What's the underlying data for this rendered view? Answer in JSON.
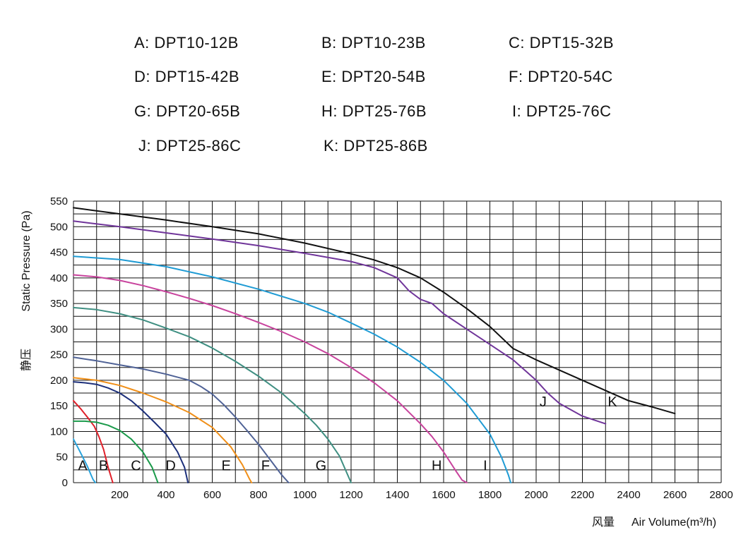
{
  "legend": [
    {
      "key": "A",
      "text": "A: DPT10-12B"
    },
    {
      "key": "B",
      "text": "B: DPT10-23B"
    },
    {
      "key": "C",
      "text": "C: DPT15-32B"
    },
    {
      "key": "D",
      "text": "D: DPT15-42B"
    },
    {
      "key": "E",
      "text": "E: DPT20-54B"
    },
    {
      "key": "F",
      "text": "F: DPT20-54C"
    },
    {
      "key": "G",
      "text": "G: DPT20-65B"
    },
    {
      "key": "H",
      "text": "H: DPT25-76B"
    },
    {
      "key": "I",
      "text": "I: DPT25-76C"
    },
    {
      "key": "J",
      "text": "J: DPT25-86C"
    },
    {
      "key": "K",
      "text": "K: DPT25-86B"
    }
  ],
  "chart_data": {
    "type": "line",
    "title": "",
    "ylabel_en": "Static Pressure (Pa)",
    "ylabel_zh": "静压",
    "xlabel_zh": "风量",
    "xlabel_en": "Air Volume(m³/h)",
    "xlim": [
      0,
      2800
    ],
    "ylim": [
      0,
      550
    ],
    "x_ticks": [
      200,
      400,
      600,
      800,
      1000,
      1200,
      1400,
      1600,
      1800,
      2000,
      2200,
      2400,
      2600,
      2800
    ],
    "y_ticks": [
      0,
      50,
      100,
      150,
      200,
      250,
      300,
      350,
      400,
      450,
      500,
      550
    ],
    "grid": true,
    "series": [
      {
        "name": "A",
        "color": "#29a3dc",
        "x": [
          0,
          20,
          40,
          60,
          75,
          85,
          95
        ],
        "y": [
          85,
          68,
          50,
          32,
          16,
          6,
          0
        ]
      },
      {
        "name": "B",
        "color": "#e0202a",
        "x": [
          0,
          30,
          60,
          90,
          110,
          130,
          150,
          170
        ],
        "y": [
          160,
          145,
          128,
          110,
          90,
          65,
          30,
          0
        ]
      },
      {
        "name": "C",
        "color": "#1a9a4a",
        "x": [
          0,
          50,
          100,
          150,
          200,
          250,
          300,
          340,
          365
        ],
        "y": [
          120,
          120,
          118,
          112,
          102,
          85,
          60,
          30,
          0
        ]
      },
      {
        "name": "D",
        "color": "#1c2f7a",
        "x": [
          0,
          50,
          100,
          150,
          200,
          250,
          300,
          350,
          400,
          450,
          480,
          495
        ],
        "y": [
          197,
          195,
          192,
          185,
          175,
          160,
          140,
          118,
          95,
          60,
          30,
          0
        ]
      },
      {
        "name": "E",
        "color": "#f08f18",
        "x": [
          0,
          100,
          200,
          300,
          400,
          500,
          600,
          680,
          730,
          760,
          770
        ],
        "y": [
          205,
          200,
          190,
          175,
          158,
          137,
          108,
          70,
          35,
          8,
          0
        ]
      },
      {
        "name": "F",
        "color": "#4f6296",
        "x": [
          0,
          100,
          200,
          300,
          400,
          500,
          550,
          600,
          650,
          700,
          750,
          800,
          850,
          900,
          930
        ],
        "y": [
          245,
          238,
          230,
          222,
          212,
          200,
          188,
          173,
          152,
          128,
          102,
          75,
          45,
          15,
          0
        ]
      },
      {
        "name": "G",
        "color": "#3f8f82",
        "x": [
          0,
          100,
          200,
          300,
          400,
          500,
          600,
          700,
          800,
          900,
          1000,
          1050,
          1100,
          1150,
          1200
        ],
        "y": [
          342,
          338,
          330,
          318,
          302,
          285,
          263,
          237,
          208,
          175,
          135,
          112,
          85,
          52,
          0
        ]
      },
      {
        "name": "H",
        "color": "#c8439d",
        "x": [
          0,
          100,
          200,
          300,
          400,
          500,
          600,
          700,
          800,
          900,
          1000,
          1100,
          1200,
          1300,
          1400,
          1500,
          1550,
          1600,
          1650,
          1680,
          1700
        ],
        "y": [
          406,
          402,
          395,
          385,
          373,
          360,
          346,
          330,
          313,
          295,
          275,
          252,
          225,
          195,
          160,
          115,
          90,
          60,
          25,
          5,
          0
        ]
      },
      {
        "name": "I",
        "color": "#1f9bd4",
        "x": [
          0,
          200,
          400,
          600,
          800,
          1000,
          1100,
          1200,
          1300,
          1400,
          1500,
          1600,
          1700,
          1750,
          1800,
          1850,
          1880,
          1890
        ],
        "y": [
          442,
          436,
          422,
          402,
          378,
          350,
          333,
          312,
          290,
          265,
          235,
          200,
          155,
          125,
          95,
          50,
          15,
          0
        ]
      },
      {
        "name": "J",
        "color": "#70359a",
        "x": [
          0,
          200,
          400,
          600,
          800,
          1000,
          1200,
          1300,
          1400,
          1450,
          1500,
          1550,
          1600,
          1700,
          1800,
          1900,
          2000,
          2050,
          2100,
          2200,
          2300
        ],
        "y": [
          511,
          500,
          488,
          476,
          463,
          448,
          432,
          420,
          400,
          375,
          358,
          350,
          330,
          300,
          270,
          240,
          200,
          175,
          155,
          130,
          115
        ]
      },
      {
        "name": "K",
        "color": "#111111",
        "x": [
          0,
          200,
          400,
          600,
          800,
          1000,
          1200,
          1300,
          1400,
          1500,
          1600,
          1700,
          1800,
          1900,
          2000,
          2100,
          2200,
          2300,
          2400,
          2500,
          2600
        ],
        "y": [
          537,
          525,
          513,
          500,
          486,
          468,
          447,
          435,
          420,
          400,
          372,
          340,
          305,
          262,
          240,
          220,
          200,
          180,
          160,
          148,
          135
        ]
      }
    ],
    "curve_labels": [
      {
        "text": "A",
        "x": 40,
        "y": 35
      },
      {
        "text": "B",
        "x": 130,
        "y": 35
      },
      {
        "text": "C",
        "x": 270,
        "y": 35
      },
      {
        "text": "D",
        "x": 420,
        "y": 35
      },
      {
        "text": "E",
        "x": 660,
        "y": 35
      },
      {
        "text": "F",
        "x": 830,
        "y": 35
      },
      {
        "text": "G",
        "x": 1070,
        "y": 35
      },
      {
        "text": "H",
        "x": 1570,
        "y": 35
      },
      {
        "text": "I",
        "x": 1780,
        "y": 35
      },
      {
        "text": "J",
        "x": 2030,
        "y": 160
      },
      {
        "text": "K",
        "x": 2330,
        "y": 160
      }
    ]
  }
}
